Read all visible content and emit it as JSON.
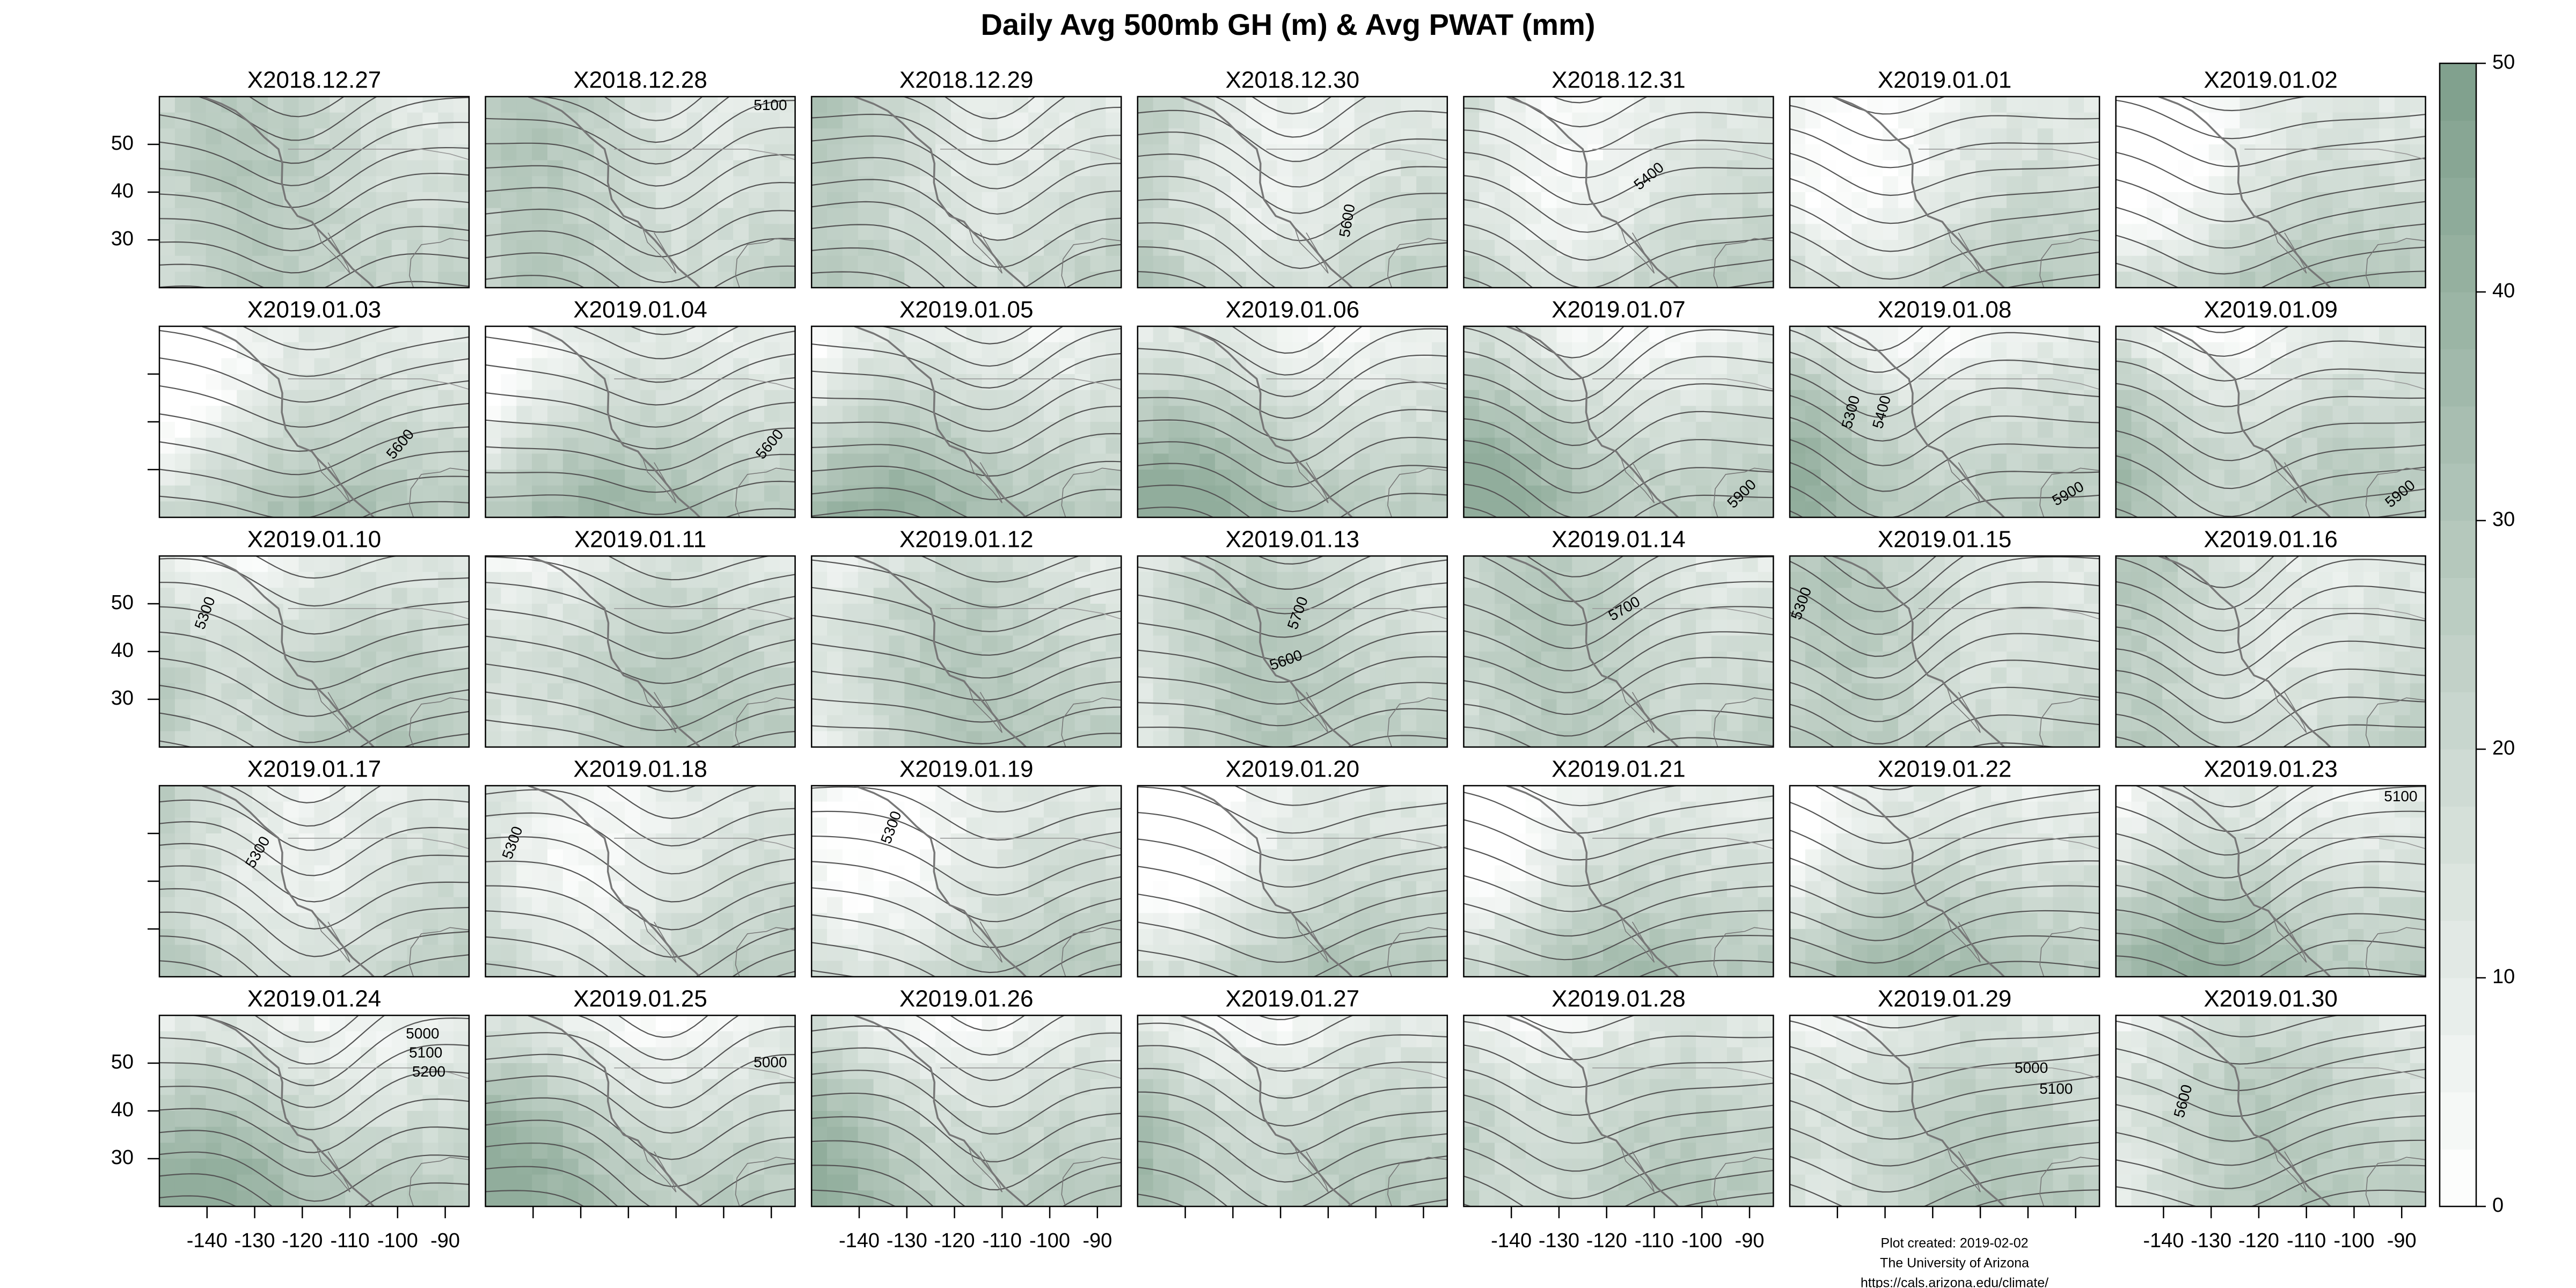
{
  "chart_data": {
    "type": "map-panels",
    "title": "Daily Avg 500mb GH (m) & Avg PWAT (mm)",
    "xlim": [
      -150,
      -85
    ],
    "xticks": [
      -140,
      -130,
      -120,
      -110,
      -100,
      -90
    ],
    "ylim": [
      20,
      60
    ],
    "yticks": [
      30,
      40,
      50
    ],
    "colorbar": {
      "lim": [
        0,
        50
      ],
      "ticks": [
        0,
        10,
        20,
        30,
        40,
        50
      ],
      "colors": [
        "#ffffff",
        "#7e9f8b"
      ]
    },
    "panels": [
      {
        "title": "X2018.12.27",
        "contour_labels": []
      },
      {
        "title": "X2018.12.28",
        "contour_labels": [
          5100
        ]
      },
      {
        "title": "X2018.12.29",
        "contour_labels": []
      },
      {
        "title": "X2018.12.30",
        "contour_labels": [
          5600
        ]
      },
      {
        "title": "X2018.12.31",
        "contour_labels": [
          5400
        ]
      },
      {
        "title": "X2019.01.01",
        "contour_labels": []
      },
      {
        "title": "X2019.01.02",
        "contour_labels": []
      },
      {
        "title": "X2019.01.03",
        "contour_labels": [
          5600
        ]
      },
      {
        "title": "X2019.01.04",
        "contour_labels": [
          5600
        ]
      },
      {
        "title": "X2019.01.05",
        "contour_labels": []
      },
      {
        "title": "X2019.01.06",
        "contour_labels": []
      },
      {
        "title": "X2019.01.07",
        "contour_labels": [
          5900
        ]
      },
      {
        "title": "X2019.01.08",
        "contour_labels": [
          5300,
          5400,
          5900
        ]
      },
      {
        "title": "X2019.01.09",
        "contour_labels": [
          5900
        ]
      },
      {
        "title": "X2019.01.10",
        "contour_labels": [
          5300
        ]
      },
      {
        "title": "X2019.01.11",
        "contour_labels": []
      },
      {
        "title": "X2019.01.12",
        "contour_labels": []
      },
      {
        "title": "X2019.01.13",
        "contour_labels": [
          5700,
          5600
        ]
      },
      {
        "title": "X2019.01.14",
        "contour_labels": [
          5700
        ]
      },
      {
        "title": "X2019.01.15",
        "contour_labels": [
          5300
        ]
      },
      {
        "title": "X2019.01.16",
        "contour_labels": []
      },
      {
        "title": "X2019.01.17",
        "contour_labels": [
          5300
        ]
      },
      {
        "title": "X2019.01.18",
        "contour_labels": [
          5300
        ]
      },
      {
        "title": "X2019.01.19",
        "contour_labels": [
          5300
        ]
      },
      {
        "title": "X2019.01.20",
        "contour_labels": []
      },
      {
        "title": "X2019.01.21",
        "contour_labels": []
      },
      {
        "title": "X2019.01.22",
        "contour_labels": []
      },
      {
        "title": "X2019.01.23",
        "contour_labels": [
          5100
        ]
      },
      {
        "title": "X2019.01.24",
        "contour_labels": [
          5000,
          5100,
          5200
        ]
      },
      {
        "title": "X2019.01.25",
        "contour_labels": [
          5000
        ]
      },
      {
        "title": "X2019.01.26",
        "contour_labels": []
      },
      {
        "title": "X2019.01.27",
        "contour_labels": []
      },
      {
        "title": "X2019.01.28",
        "contour_labels": []
      },
      {
        "title": "X2019.01.29",
        "contour_labels": [
          5000,
          5100
        ]
      },
      {
        "title": "X2019.01.30",
        "contour_labels": [
          5600
        ]
      }
    ],
    "footer": [
      "Plot created: 2019-02-02",
      "The University of Arizona",
      "https://cals.arizona.edu/climate/"
    ]
  }
}
